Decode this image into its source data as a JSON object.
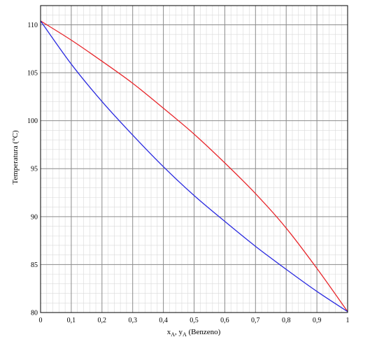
{
  "chart_data": {
    "type": "line",
    "xlabel_main": "x",
    "xlabel_sub1": "A",
    "xlabel_mid": ", y",
    "xlabel_sub2": "A",
    "xlabel_tail": " (Benzeno)",
    "ylabel": "Temperatura (°C)",
    "xlim": [
      0,
      1
    ],
    "ylim": [
      80,
      112
    ],
    "x_ticks": [
      0,
      0.1,
      0.2,
      0.3,
      0.4,
      0.5,
      0.6,
      0.7,
      0.8,
      0.9,
      1
    ],
    "x_tick_labels": [
      "0",
      "0,1",
      "0,2",
      "0,3",
      "0,4",
      "0,5",
      "0,6",
      "0,7",
      "0,8",
      "0,9",
      "1"
    ],
    "y_ticks": [
      80,
      85,
      90,
      95,
      100,
      105,
      110
    ],
    "y_tick_labels": [
      "80",
      "85",
      "90",
      "95",
      "100",
      "105",
      "110"
    ],
    "grid": true,
    "minor_grid": true,
    "series": [
      {
        "color": "#e8262b",
        "x": [
          0,
          0.1,
          0.2,
          0.3,
          0.4,
          0.5,
          0.6,
          0.7,
          0.8,
          0.9,
          1
        ],
        "y": [
          110.4,
          108.4,
          106.2,
          103.9,
          101.3,
          98.6,
          95.6,
          92.4,
          88.8,
          84.6,
          80.1
        ]
      },
      {
        "color": "#2a2ae0",
        "x": [
          0,
          0.1,
          0.2,
          0.3,
          0.4,
          0.5,
          0.6,
          0.7,
          0.8,
          0.9,
          1
        ],
        "y": [
          110.4,
          105.9,
          102.0,
          98.5,
          95.2,
          92.2,
          89.5,
          86.9,
          84.5,
          82.2,
          80.1
        ]
      }
    ]
  }
}
